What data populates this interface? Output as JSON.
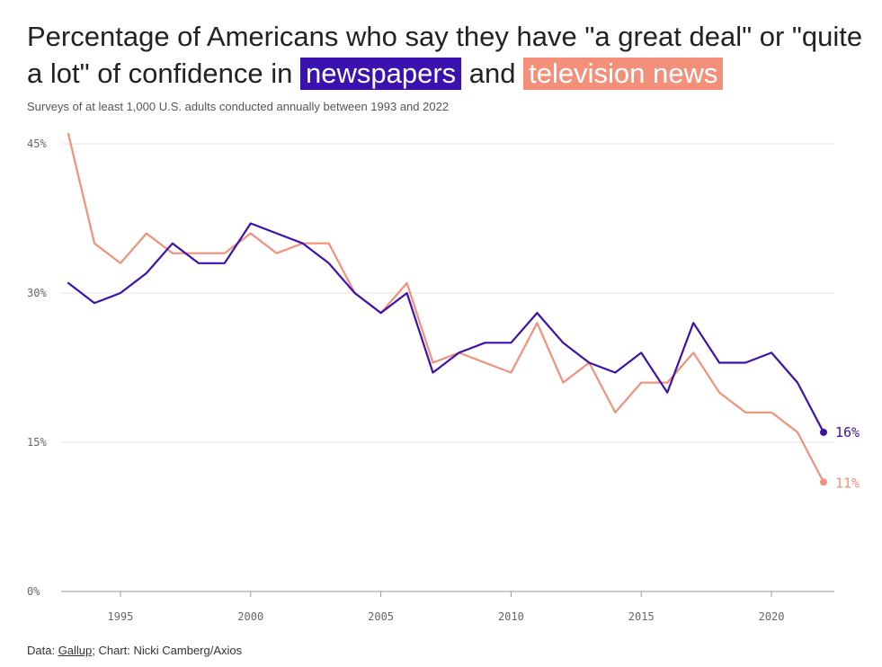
{
  "title": {
    "before": "Percentage of Americans who say they have \"a great deal\" or \"quite a lot\" of confidence in",
    "highlight1": "newspapers",
    "middle": "and",
    "highlight2": "television news"
  },
  "subtitle": "Surveys of at least 1,000 U.S. adults conducted annually between 1993 and 2022",
  "source": {
    "prefix": "Data: ",
    "link": "Gallup",
    "suffix": "; Chart: Nicki Camberg/Axios"
  },
  "colors": {
    "newspapers": "#3b12b0",
    "television": "#f4907a",
    "grid": "#e3e3e3"
  },
  "chart_data": {
    "type": "line",
    "x": [
      1993,
      1994,
      1995,
      1996,
      1997,
      1998,
      1999,
      2000,
      2001,
      2002,
      2003,
      2004,
      2005,
      2006,
      2007,
      2008,
      2009,
      2010,
      2011,
      2012,
      2013,
      2014,
      2015,
      2016,
      2017,
      2018,
      2019,
      2020,
      2021,
      2022
    ],
    "series": [
      {
        "name": "newspapers",
        "values": [
          31,
          29,
          30,
          32,
          35,
          33,
          33,
          37,
          36,
          35,
          33,
          30,
          28,
          30,
          22,
          24,
          25,
          25,
          28,
          25,
          23,
          22,
          24,
          20,
          27,
          23,
          23,
          24,
          21,
          16
        ],
        "end_label": "16%"
      },
      {
        "name": "television news",
        "values": [
          46,
          35,
          33,
          36,
          34,
          34,
          34,
          36,
          34,
          35,
          35,
          30,
          28,
          31,
          23,
          24,
          23,
          22,
          27,
          21,
          23,
          18,
          21,
          21,
          24,
          20,
          18,
          18,
          16,
          11
        ],
        "end_label": "11%"
      }
    ],
    "ylim": [
      0,
      45
    ],
    "yticks": [
      0,
      15,
      30,
      45
    ],
    "ytick_labels": [
      "0%",
      "15%",
      "30%",
      "45%"
    ],
    "xlim": [
      1993,
      2022
    ],
    "xticks": [
      1995,
      2000,
      2005,
      2010,
      2015,
      2020
    ],
    "xtick_labels": [
      "1995",
      "2000",
      "2005",
      "2010",
      "2015",
      "2020"
    ],
    "grid": true,
    "legend": "none"
  }
}
